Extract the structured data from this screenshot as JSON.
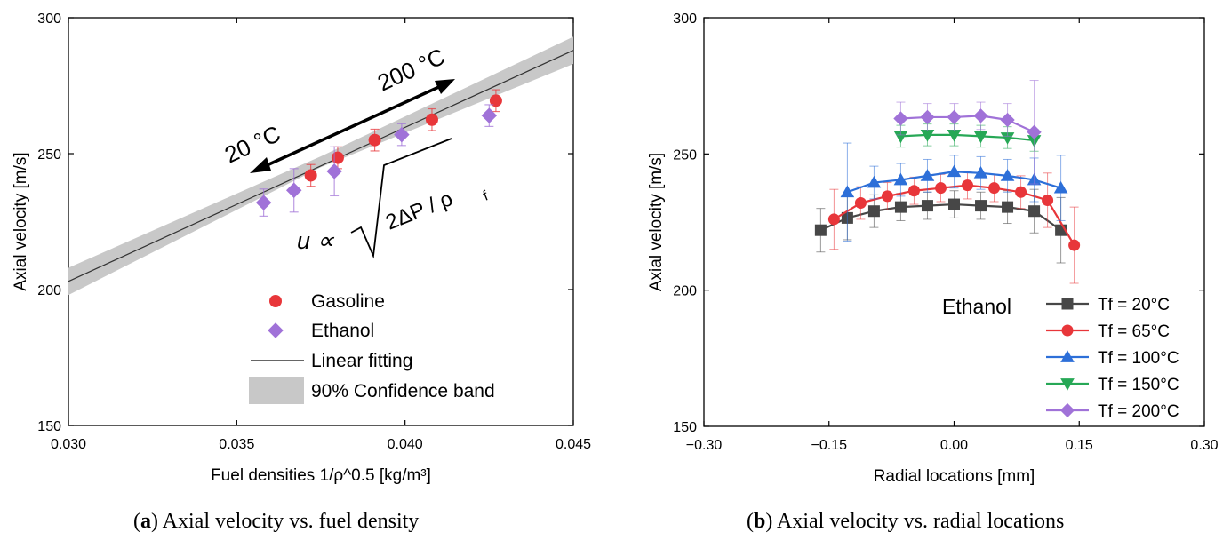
{
  "chart_data": [
    {
      "panel": "a",
      "type": "scatter",
      "caption_letter": "a",
      "caption": "Axial velocity vs. fuel density",
      "xlabel": "Fuel densities 1/ρ^0.5 [kg/m³]",
      "ylabel": "Axial velocity [m/s]",
      "xlim": [
        0.03,
        0.045
      ],
      "ylim": [
        150,
        300
      ],
      "xticks": [
        "0.030",
        "0.035",
        "0.040",
        "0.045"
      ],
      "yticks": [
        "150",
        "200",
        "250",
        "300"
      ],
      "grid": false,
      "legend_position": "lower-right",
      "colors": {
        "gasoline": "#e8363a",
        "ethanol": "#a072d8",
        "fit": "#333333",
        "band": "#c8c8c8"
      },
      "series": [
        {
          "name": "Gasoline",
          "marker": "circle",
          "x": [
            0.0372,
            0.038,
            0.0391,
            0.0408,
            0.0427
          ],
          "y": [
            242,
            248.5,
            255,
            262.5,
            269.5
          ],
          "err": [
            4,
            4,
            4,
            4,
            4
          ]
        },
        {
          "name": "Ethanol",
          "marker": "diamond",
          "x": [
            0.0358,
            0.0367,
            0.0379,
            0.0399,
            0.0425
          ],
          "y": [
            232,
            236.5,
            243.5,
            257,
            264
          ],
          "err": [
            5,
            8,
            9,
            4,
            4
          ]
        }
      ],
      "fit": {
        "name": "Linear fitting",
        "x": [
          0.03,
          0.045
        ],
        "y": [
          203,
          288
        ]
      },
      "band": {
        "name": "90% Confidence band",
        "x": [
          0.03,
          0.0375,
          0.045
        ],
        "lower": [
          198,
          245,
          283
        ],
        "upper": [
          208,
          249,
          293
        ]
      },
      "annotations": {
        "cold": "20 °C",
        "hot": "200 °C",
        "formula_lhs": "u ∝",
        "formula_rhs": "2ΔP / ρ",
        "formula_sub": "f"
      }
    },
    {
      "panel": "b",
      "type": "line",
      "caption_letter": "b",
      "caption": "Axial velocity vs. radial locations",
      "xlabel": "Radial locations [mm]",
      "ylabel": "Axial velocity [m/s]",
      "xlim": [
        -0.3,
        0.3
      ],
      "ylim": [
        150,
        300
      ],
      "xticks": [
        "−0.30",
        "−0.15",
        "0.00",
        "0.15",
        "0.30"
      ],
      "yticks": [
        "150",
        "200",
        "250",
        "300"
      ],
      "grid": false,
      "legend_title": "Ethanol",
      "legend_position": "lower-right",
      "series": [
        {
          "name": "Tf = 20°C",
          "color": "#474747",
          "marker": "square",
          "x": [
            -0.16,
            -0.128,
            -0.096,
            -0.064,
            -0.032,
            0.0,
            0.032,
            0.064,
            0.096,
            0.128
          ],
          "y": [
            222,
            226.5,
            229,
            230.5,
            231,
            231.5,
            231,
            230.5,
            229,
            222
          ],
          "err": [
            8,
            8,
            6,
            5,
            5,
            5,
            5,
            6,
            8,
            12
          ]
        },
        {
          "name": "Tf = 65°C",
          "color": "#e8363a",
          "marker": "circle",
          "x": [
            -0.144,
            -0.112,
            -0.08,
            -0.048,
            -0.016,
            0.016,
            0.048,
            0.08,
            0.112,
            0.144
          ],
          "y": [
            226,
            232,
            234.5,
            236.5,
            237.5,
            238.5,
            237.5,
            236,
            233,
            216.5
          ],
          "err": [
            11,
            6,
            5,
            5,
            5,
            5,
            5,
            6,
            10,
            14
          ]
        },
        {
          "name": "Tf = 100°C",
          "color": "#2d6fd8",
          "marker": "triangle-up",
          "x": [
            -0.128,
            -0.096,
            -0.064,
            -0.032,
            0.0,
            0.032,
            0.064,
            0.096,
            0.128
          ],
          "y": [
            236,
            239.5,
            240.5,
            242,
            243.5,
            243,
            242,
            240.5,
            237.5
          ],
          "err": [
            18,
            6,
            6,
            6,
            6,
            6,
            6,
            8,
            12
          ]
        },
        {
          "name": "Tf = 150°C",
          "color": "#27a856",
          "marker": "triangle-down",
          "x": [
            -0.064,
            -0.032,
            0.0,
            0.032,
            0.064,
            0.096
          ],
          "y": [
            256.5,
            257,
            257,
            256.5,
            256,
            255
          ],
          "err": [
            4,
            4,
            4,
            4,
            4,
            4
          ]
        },
        {
          "name": "Tf = 200°C",
          "color": "#a072d8",
          "marker": "diamond",
          "x": [
            -0.064,
            -0.032,
            0.0,
            0.032,
            0.064,
            0.096
          ],
          "y": [
            263,
            263.5,
            263.5,
            264,
            262.5,
            258
          ],
          "err": [
            6,
            5,
            5,
            5,
            6,
            19
          ]
        }
      ]
    }
  ]
}
